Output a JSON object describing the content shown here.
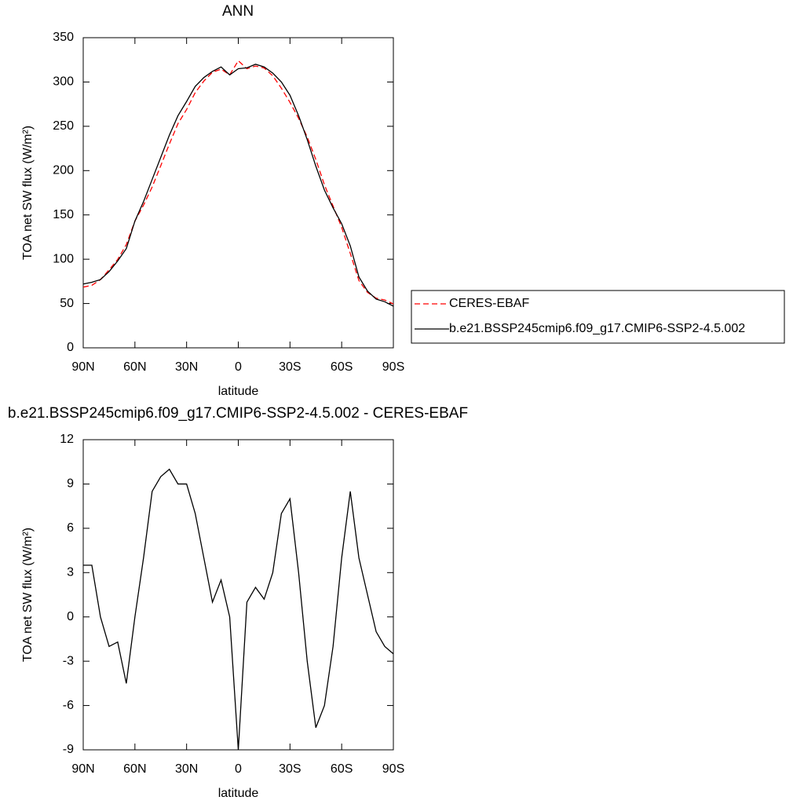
{
  "chart_data": [
    {
      "type": "line",
      "title": "ANN",
      "xlabel": "latitude",
      "ylabel": "TOA net SW flux (W/m²)",
      "x": [
        90,
        85,
        80,
        75,
        70,
        65,
        60,
        55,
        50,
        45,
        40,
        35,
        30,
        25,
        20,
        15,
        10,
        5,
        0,
        -5,
        -10,
        -15,
        -20,
        -25,
        -30,
        -35,
        -40,
        -45,
        -50,
        -55,
        -60,
        -65,
        -70,
        -75,
        -80,
        -85,
        -90
      ],
      "series": [
        {
          "name": "CERES-EBAF",
          "color": "#ff0000",
          "dashed": true,
          "values": [
            68.5,
            70.5,
            77,
            88,
            99.7,
            116.5,
            143,
            161,
            181.5,
            205.5,
            230,
            253,
            269,
            288,
            301,
            311,
            314.5,
            308,
            324,
            315,
            318,
            315.8,
            307,
            293,
            277,
            259,
            238,
            212.5,
            184,
            160,
            136,
            106.5,
            76,
            62.5,
            56,
            54,
            49.5
          ]
        },
        {
          "name": "b.e21.BSSP245cmip6.f09_g17.CMIP6-SSP2-4.5.002",
          "color": "#000000",
          "dashed": false,
          "values": [
            72,
            74,
            77,
            86,
            98,
            112,
            143,
            165,
            190,
            215,
            240,
            262,
            278,
            295,
            305,
            312,
            317,
            308,
            315,
            316,
            320,
            317,
            310,
            300,
            285,
            262,
            235,
            205,
            178,
            158,
            140,
            115,
            80,
            64,
            55,
            52,
            47
          ]
        }
      ],
      "xlim": [
        90,
        -90
      ],
      "xticks": [
        {
          "value": 90,
          "label": "90N"
        },
        {
          "value": 60,
          "label": "60N"
        },
        {
          "value": 30,
          "label": "30N"
        },
        0,
        {
          "value": -30,
          "label": "30S"
        },
        {
          "value": -60,
          "label": "60S"
        },
        {
          "value": -90,
          "label": "90S"
        }
      ],
      "ylim": [
        0,
        350
      ],
      "yticks": [
        0,
        50,
        100,
        150,
        200,
        250,
        300,
        350
      ],
      "legend": "outside-right"
    },
    {
      "type": "line",
      "title": "b.e21.BSSP245cmip6.f09_g17.CMIP6-SSP2-4.5.002 - CERES-EBAF",
      "xlabel": "latitude",
      "ylabel": "TOA net SW flux (W/m²)",
      "x": [
        90,
        85,
        80,
        75,
        70,
        65,
        60,
        55,
        50,
        45,
        40,
        35,
        30,
        25,
        20,
        15,
        10,
        5,
        0,
        -5,
        -10,
        -15,
        -20,
        -25,
        -30,
        -35,
        -40,
        -45,
        -50,
        -55,
        -60,
        -65,
        -70,
        -75,
        -80,
        -85,
        -90
      ],
      "values": [
        3.5,
        3.5,
        0,
        -2,
        -1.7,
        -4.5,
        0,
        4,
        8.5,
        9.5,
        10,
        9,
        9,
        7,
        4,
        1,
        2.5,
        0,
        -9,
        1,
        2,
        1.2,
        3,
        7,
        8,
        3,
        -3,
        -7.5,
        -6,
        -2,
        4,
        8.5,
        4,
        1.5,
        -1,
        -2,
        -2.5
      ],
      "color": "#000000",
      "xlim": [
        90,
        -90
      ],
      "xticks": [
        {
          "value": 90,
          "label": "90N"
        },
        {
          "value": 60,
          "label": "60N"
        },
        {
          "value": 30,
          "label": "30N"
        },
        0,
        {
          "value": -30,
          "label": "30S"
        },
        {
          "value": -60,
          "label": "60S"
        },
        {
          "value": -90,
          "label": "90S"
        }
      ],
      "ylim": [
        -9,
        12
      ],
      "yticks": [
        -9,
        -6,
        -3,
        0,
        3,
        6,
        9,
        12
      ]
    }
  ]
}
